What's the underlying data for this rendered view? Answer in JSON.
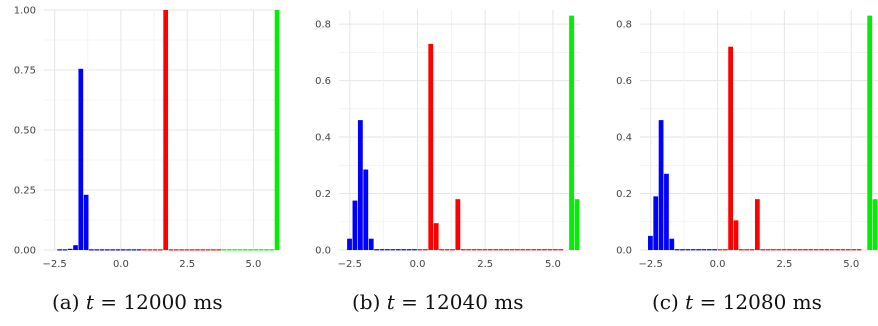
{
  "colors": {
    "blue": "#0000ff",
    "red": "#ff0000",
    "green": "#00ee00",
    "grid": "#e6e6e6",
    "axis_text": "#444444"
  },
  "captions": [
    {
      "label": "(a)",
      "var": "t",
      "eq": " = 12000 ms"
    },
    {
      "label": "(b)",
      "var": "t",
      "eq": " = 12040 ms"
    },
    {
      "label": "(c)",
      "var": "t",
      "eq": " = 12080 ms"
    }
  ],
  "chart_data": [
    {
      "type": "bar",
      "title": "",
      "xlabel": "",
      "ylabel": "",
      "xlim": [
        -2.9,
        6.0
      ],
      "ylim": [
        0,
        1.0
      ],
      "xticks": [
        -2.5,
        0.0,
        2.5,
        5.0
      ],
      "xtick_labels": [
        "−2.5",
        "0.0",
        "2.5",
        "5.0"
      ],
      "yticks": [
        0,
        0.25,
        0.5,
        0.75,
        1.0
      ],
      "ytick_labels": [
        "0.00",
        "0.25",
        "0.50",
        "0.75",
        "1.00"
      ],
      "bar_width": 0.2,
      "grid": true,
      "series": [
        {
          "color": "blue",
          "x": [
            -2.3,
            -2.1,
            -1.9,
            -1.7,
            -1.5,
            -1.3,
            -1.1,
            -0.9,
            -0.7,
            -0.5,
            -0.3,
            -0.1,
            0.1,
            0.3,
            0.5,
            0.7
          ],
          "values": [
            0.003,
            0.003,
            0.005,
            0.02,
            0.755,
            0.23,
            0.003,
            0.003,
            0.003,
            0.003,
            0.003,
            0.003,
            0.003,
            0.003,
            0.003,
            0.003
          ]
        },
        {
          "color": "red",
          "x": [
            0.9,
            1.1,
            1.3,
            1.5,
            1.7,
            1.9,
            2.1,
            2.3,
            2.5,
            2.7,
            2.9,
            3.1,
            3.3,
            3.5,
            3.7
          ],
          "values": [
            0.003,
            0.003,
            0.003,
            0.003,
            1.0,
            0.003,
            0.003,
            0.003,
            0.003,
            0.003,
            0.003,
            0.003,
            0.003,
            0.003,
            0.003
          ]
        },
        {
          "color": "green",
          "x": [
            3.9,
            4.1,
            4.3,
            4.5,
            4.7,
            4.9,
            5.1,
            5.3,
            5.5,
            5.7,
            5.9
          ],
          "values": [
            0.003,
            0.003,
            0.003,
            0.003,
            0.003,
            0.003,
            0.003,
            0.003,
            0.003,
            0.003,
            1.0
          ]
        }
      ]
    },
    {
      "type": "bar",
      "title": "",
      "xlabel": "",
      "ylabel": "",
      "xlim": [
        -2.9,
        6.0
      ],
      "ylim": [
        0,
        0.85
      ],
      "xticks": [
        -2.5,
        0.0,
        2.5,
        5.0
      ],
      "xtick_labels": [
        "−2.5",
        "0.0",
        "2.5",
        "5.0"
      ],
      "yticks": [
        0,
        0.2,
        0.4,
        0.6,
        0.8
      ],
      "ytick_labels": [
        "0.0",
        "0.2",
        "0.4",
        "0.6",
        "0.8"
      ],
      "bar_width": 0.2,
      "grid": true,
      "series": [
        {
          "color": "blue",
          "x": [
            -2.5,
            -2.3,
            -2.1,
            -1.9,
            -1.7,
            -1.5,
            -1.3,
            -1.1,
            -0.9,
            -0.7,
            -0.5,
            -0.3,
            -0.1
          ],
          "values": [
            0.04,
            0.175,
            0.46,
            0.285,
            0.04,
            0.003,
            0.003,
            0.003,
            0.003,
            0.003,
            0.003,
            0.003,
            0.003
          ]
        },
        {
          "color": "red",
          "x": [
            0.1,
            0.3,
            0.5,
            0.7,
            0.9,
            1.1,
            1.3,
            1.5,
            1.7,
            1.9,
            2.1,
            2.3,
            2.5,
            2.7,
            2.9,
            3.1,
            3.3,
            3.5,
            3.7,
            3.9,
            4.1,
            4.3,
            4.5,
            4.7,
            4.9,
            5.1,
            5.3
          ],
          "values": [
            0.003,
            0.003,
            0.73,
            0.095,
            0.003,
            0.003,
            0.003,
            0.18,
            0.003,
            0.003,
            0.003,
            0.003,
            0.003,
            0.003,
            0.003,
            0.003,
            0.003,
            0.003,
            0.003,
            0.003,
            0.003,
            0.003,
            0.003,
            0.003,
            0.003,
            0.003,
            0.003
          ]
        },
        {
          "color": "green",
          "x": [
            5.7,
            5.9
          ],
          "values": [
            0.83,
            0.18
          ]
        }
      ]
    },
    {
      "type": "bar",
      "title": "",
      "xlabel": "",
      "ylabel": "",
      "xlim": [
        -2.9,
        6.0
      ],
      "ylim": [
        0,
        0.85
      ],
      "xticks": [
        -2.5,
        0.0,
        2.5,
        5.0
      ],
      "xtick_labels": [
        "−2.5",
        "0.0",
        "2.5",
        "5.0"
      ],
      "yticks": [
        0,
        0.2,
        0.4,
        0.6,
        0.8
      ],
      "ytick_labels": [
        "0.0",
        "0.2",
        "0.4",
        "0.6",
        "0.8"
      ],
      "bar_width": 0.2,
      "grid": true,
      "series": [
        {
          "color": "blue",
          "x": [
            -2.5,
            -2.3,
            -2.1,
            -1.9,
            -1.7,
            -1.5,
            -1.3,
            -1.1,
            -0.9,
            -0.7,
            -0.5,
            -0.3,
            -0.1
          ],
          "values": [
            0.05,
            0.19,
            0.46,
            0.27,
            0.04,
            0.003,
            0.003,
            0.003,
            0.003,
            0.003,
            0.003,
            0.003,
            0.003
          ]
        },
        {
          "color": "red",
          "x": [
            0.1,
            0.3,
            0.5,
            0.7,
            0.9,
            1.1,
            1.3,
            1.5,
            1.7,
            1.9,
            2.1,
            2.3,
            2.5,
            2.7,
            2.9,
            3.1,
            3.3,
            3.5,
            3.7,
            3.9,
            4.1,
            4.3,
            4.5,
            4.7,
            4.9,
            5.1,
            5.3
          ],
          "values": [
            0.003,
            0.003,
            0.72,
            0.105,
            0.003,
            0.003,
            0.003,
            0.18,
            0.003,
            0.003,
            0.003,
            0.003,
            0.003,
            0.003,
            0.003,
            0.003,
            0.003,
            0.003,
            0.003,
            0.003,
            0.003,
            0.003,
            0.003,
            0.003,
            0.003,
            0.003,
            0.003
          ]
        },
        {
          "color": "green",
          "x": [
            5.7,
            5.9
          ],
          "values": [
            0.83,
            0.18
          ]
        }
      ]
    }
  ]
}
